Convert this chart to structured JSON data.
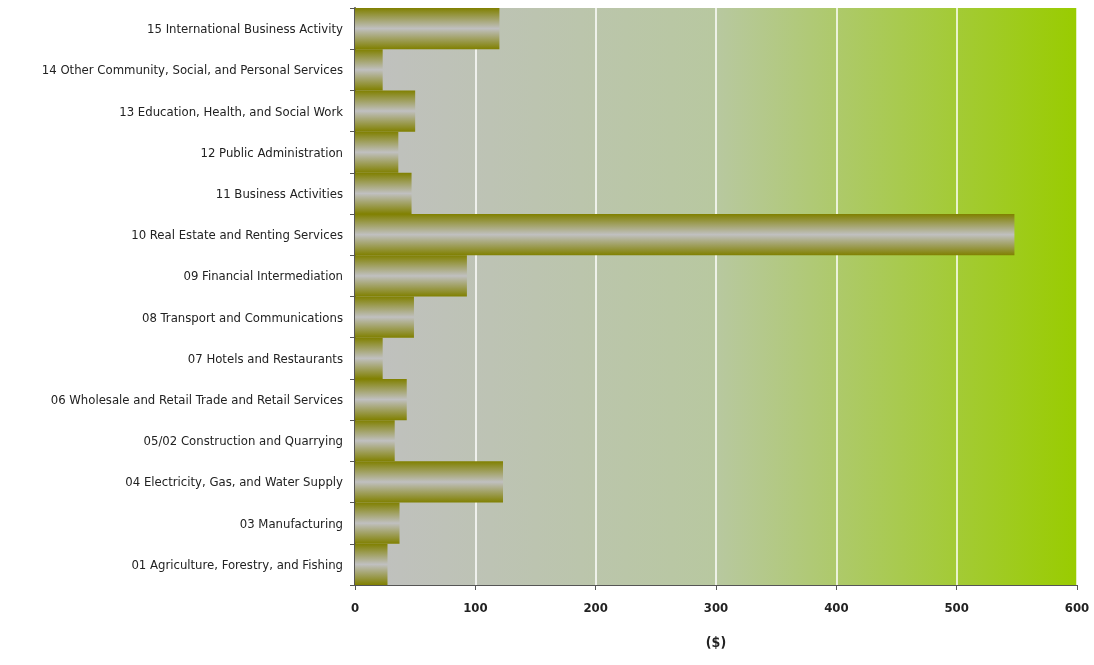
{
  "chart_data": {
    "type": "bar",
    "orientation": "horizontal",
    "xlabel": "($)",
    "categories": [
      "15 International Business Activity",
      "14 Other Community, Social, and Personal Services",
      "13 Education, Health, and Social Work",
      "12 Public Administration",
      "11 Business Activities",
      "10 Real Estate and Renting Services",
      "09 Financial Intermediation",
      "08 Transport and Communications",
      "07 Hotels and Restaurants",
      "06 Wholesale and Retail Trade and Retail Services",
      "05/02 Construction and Quarrying",
      "04 Electricity, Gas, and Water Supply",
      "03 Manufacturing",
      "01 Agriculture, Forestry, and Fishing"
    ],
    "values": [
      120,
      23,
      50,
      36,
      47,
      548,
      93,
      49,
      23,
      43,
      33,
      123,
      37,
      27
    ],
    "color": "#808000",
    "xlim": [
      0,
      600
    ],
    "xticks": [
      0,
      100,
      200,
      300,
      400,
      500,
      600
    ],
    "grid": "x"
  }
}
